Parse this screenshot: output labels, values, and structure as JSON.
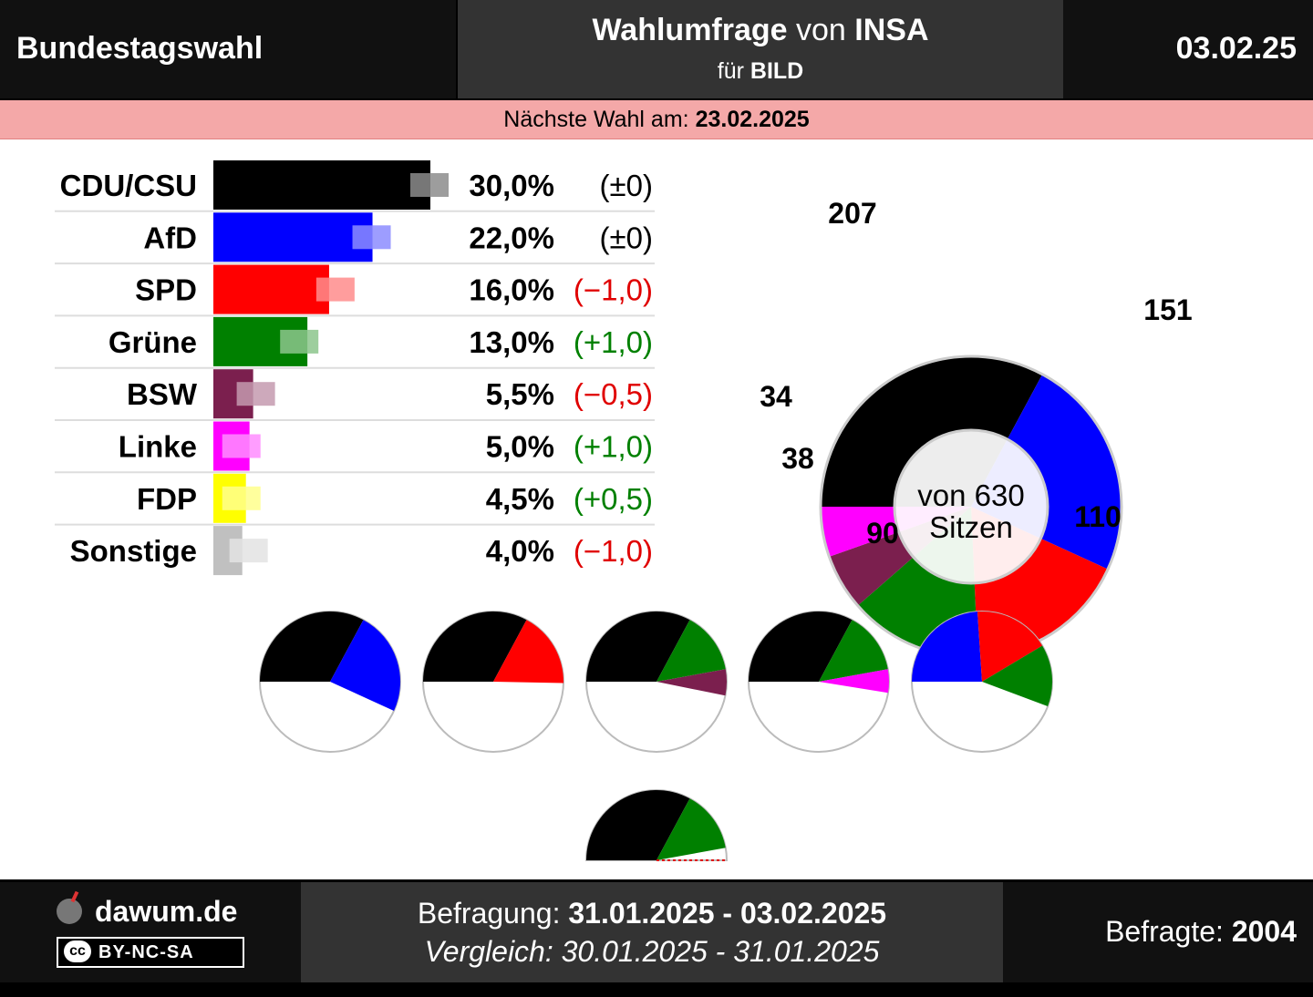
{
  "header": {
    "election": "Bundestagswahl",
    "poll_prefix": "Wahlumfrage",
    "poll_von": "von",
    "institute": "INSA",
    "client_prefix": "für",
    "client": "BILD",
    "date": "03.02.25"
  },
  "next_election": {
    "label": "Nächste Wahl am:",
    "date": "23.02.2025"
  },
  "chart_data": [
    {
      "type": "bar",
      "orientation": "horizontal",
      "categories": [
        "CDU/CSU",
        "AfD",
        "SPD",
        "Grüne",
        "BSW",
        "Linke",
        "FDP",
        "Sonstige"
      ],
      "values": [
        30.0,
        22.0,
        16.0,
        13.0,
        5.5,
        5.0,
        4.5,
        4.0
      ],
      "previous_values": [
        30.0,
        22.0,
        17.0,
        12.0,
        6.0,
        4.0,
        4.0,
        5.0
      ],
      "value_labels": [
        "30,0%",
        "22,0%",
        "16,0%",
        "13,0%",
        "5,5%",
        "5,0%",
        "4,5%",
        "4,0%"
      ],
      "change_labels": [
        "(±0)",
        "(±0)",
        "(−1,0)",
        "(+1,0)",
        "(−0,5)",
        "(+1,0)",
        "(+0,5)",
        "(−1,0)"
      ],
      "change_direction": [
        "none",
        "none",
        "down",
        "up",
        "down",
        "up",
        "up",
        "down"
      ],
      "colors": [
        "#000000",
        "#0000ff",
        "#ff0000",
        "#008000",
        "#7b1f4e",
        "#ff00ff",
        "#ffff00",
        "#c0c0c0"
      ],
      "xlim": [
        0,
        30
      ]
    },
    {
      "type": "pie",
      "variant": "donut",
      "categories": [
        "CDU/CSU",
        "AfD",
        "SPD",
        "Grüne",
        "BSW",
        "Linke"
      ],
      "values": [
        207,
        151,
        110,
        90,
        38,
        34
      ],
      "colors": [
        "#000000",
        "#0000ff",
        "#ff0000",
        "#008000",
        "#7b1f4e",
        "#ff00ff"
      ],
      "center_label_line1": "von 630",
      "center_label_line2": "Sitzen",
      "total": 630
    },
    {
      "type": "pie",
      "variant": "coalitions",
      "total": 630,
      "coalitions": [
        {
          "parties": [
            "CDU/CSU",
            "AfD"
          ],
          "seats": [
            207,
            151
          ]
        },
        {
          "parties": [
            "CDU/CSU",
            "SPD"
          ],
          "seats": [
            207,
            110
          ]
        },
        {
          "parties": [
            "CDU/CSU",
            "Grüne",
            "BSW"
          ],
          "seats": [
            207,
            90,
            38
          ]
        },
        {
          "parties": [
            "CDU/CSU",
            "Grüne",
            "Linke"
          ],
          "seats": [
            207,
            90,
            34
          ]
        },
        {
          "parties": [
            "AfD",
            "SPD",
            "Grüne"
          ],
          "seats": [
            151,
            110,
            90
          ]
        },
        {
          "parties": [
            "CDU/CSU",
            "Grüne"
          ],
          "seats": [
            207,
            90
          ]
        }
      ]
    }
  ],
  "colors": {
    "up": "#008000",
    "down": "#e00000",
    "neutral": "#000000",
    "majority_line": "#e00000"
  },
  "footer": {
    "site": "dawum.de",
    "license": "BY-NC-SA",
    "license_badge": "cc",
    "survey_label": "Befragung:",
    "survey_range": "31.01.2025 - 03.02.2025",
    "compare_label": "Vergleich:",
    "compare_range": "30.01.2025 - 31.01.2025",
    "respondents_label": "Befragte:",
    "respondents": "2004"
  }
}
